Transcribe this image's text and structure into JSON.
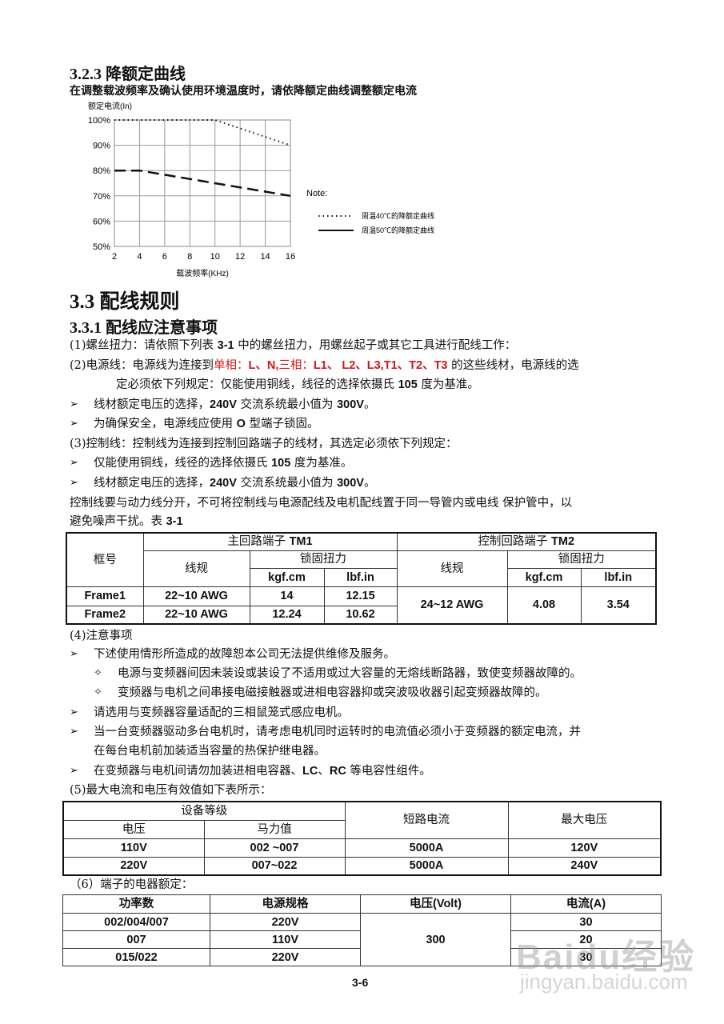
{
  "section_323": {
    "title": "3.2.3 降额定曲线",
    "intro": "在调整载波频率及确认使用环境温度时，请依降额定曲线调整额定电流"
  },
  "chart_data": {
    "type": "line",
    "ylabel": "额定电流(In)",
    "xlabel": "载波频率(KHz)",
    "xlim": [
      2,
      16
    ],
    "ylim": [
      50,
      100
    ],
    "x_ticks": [
      "2",
      "4",
      "6",
      "8",
      "10",
      "12",
      "14",
      "16"
    ],
    "y_ticks": [
      "100%",
      "90%",
      "80%",
      "70%",
      "60%",
      "50%"
    ],
    "grid": true,
    "legend_title": "Note:",
    "legend_placement": "right",
    "series": [
      {
        "name": "周温40℃的降额定曲线",
        "style": "dotted",
        "points": [
          [
            2,
            100
          ],
          [
            10,
            100
          ],
          [
            16,
            90
          ]
        ]
      },
      {
        "name": "周温50℃的降额定曲线",
        "style": "dashed",
        "points": [
          [
            2,
            80
          ],
          [
            4,
            80
          ],
          [
            16,
            70
          ]
        ]
      }
    ]
  },
  "section_33": {
    "title": "3.3 配线规则",
    "sub": "3.3.1 配线应注意事项"
  },
  "p1": {
    "a": "(1)螺丝扭力：请依照下列表 ",
    "b": "3-1",
    "c": " 中的螺丝扭力，用螺丝起子或其它工具进行配线工作："
  },
  "p2": {
    "a": "(2)电源线：电源线为连接到",
    "red1": "单相：",
    "red2": "L、N,",
    "red3": "三相：",
    "red4": "L1、 L2、L3,T1、T2、T3",
    "c": " 的这些线材，电源线的选",
    "d": "定必须依下列规定：仅能使用铜线，线径的选择依摄氏 ",
    "e": "105",
    "f": " 度为基准。"
  },
  "b1": {
    "a": "线材额定电压的选择，",
    "b": "240V",
    "c": " 交流系统最小值为 ",
    "d": "300V",
    "e": "。"
  },
  "b2": {
    "a": "为确保安全，电源线应使用 ",
    "b": "O",
    "c": " 型端子锁固。"
  },
  "p3": "(3)控制线：控制线为连接到控制回路端子的线材，其选定必须依下列规定：",
  "b3": {
    "a": "仅能使用铜线，线径的选择依摄氏 ",
    "b": "105",
    "c": " 度为基准。"
  },
  "b4": {
    "a": "线材额定电压的选择，",
    "b": "240V",
    "c": " 交流系统最小值为 ",
    "d": "300V",
    "e": "。"
  },
  "p4": {
    "a": "控制线要与动力线分开，不可将控制线与电源配线及电机配线置于同一导管内或电线 保护管中，以",
    "b": "避免噪声干扰。表 ",
    "c": "3-1"
  },
  "table1": {
    "frame": "框号",
    "tm1": "主回路端子 ",
    "tm1b": "TM1",
    "tm2": "控制回路端子 ",
    "tm2b": "TM2",
    "gauge": "线规",
    "torque": "锁固扭力",
    "kgf": "kgf.cm",
    "lbf": "lbf.in",
    "rows": [
      {
        "frame": "Frame1",
        "gauge": "22~10 AWG",
        "kgf": "14",
        "lbf": "12.15"
      },
      {
        "frame": "Frame2",
        "gauge": "22~10 AWG",
        "kgf": "12.24",
        "lbf": "10.62"
      }
    ],
    "tm2_gauge": "24~12 AWG",
    "tm2_kgf": "4.08",
    "tm2_lbf": "3.54"
  },
  "p5": "(4)注意事项",
  "n1": "下述使用情形所造成的故障恕本公司无法提供维修及服务。",
  "n1a": "电源与变频器间因未装设或装设了不适用或过大容量的无熔线断路器，致使变频器故障的。",
  "n1b": "变频器与电机之间串接电磁接触器或进相电容器抑或突波吸收器引起变频器故障的。",
  "n2": "请选用与变频器容量适配的三相鼠笼式感应电机。",
  "n3a": "当一台变频器驱动多台电机时，请考虑电机同时运转时的电流值必须小于变频器的额定电流，并",
  "n3b": "在每台电机前加装适当容量的热保护继电器。",
  "n4": {
    "a": "在变频器与电机间请勿加装进相电容器、",
    "b": "LC",
    "c": "、",
    "d": "RC",
    "e": " 等电容性组件。"
  },
  "p6": "(5)最大电流和电压有效值如下表所示：",
  "table2": {
    "class": "设备等级",
    "voltage": "电压",
    "hp": "马力值",
    "sc": "短路电流",
    "maxv": "最大电压",
    "rows": [
      {
        "v": "110V",
        "hp": "002 ~007",
        "sc": "5000A",
        "maxv": "120V"
      },
      {
        "v": "220V",
        "hp": "007~022",
        "sc": "5000A",
        "maxv": "240V"
      }
    ]
  },
  "p7": "（6）端子的电器额定：",
  "table3": {
    "h": [
      "功率数",
      "电源规格",
      "电压(Volt)",
      "电流(A)"
    ],
    "volt": "300",
    "rows": [
      {
        "p": "002/004/007",
        "s": "220V",
        "a": "30"
      },
      {
        "p": "007",
        "s": "110V",
        "a": "20"
      },
      {
        "p": "015/022",
        "s": "220V",
        "a": "30"
      }
    ]
  },
  "page_number": "3-6",
  "watermark": {
    "logo": "Baidu经验",
    "url": "jingyan.baidu.com"
  }
}
